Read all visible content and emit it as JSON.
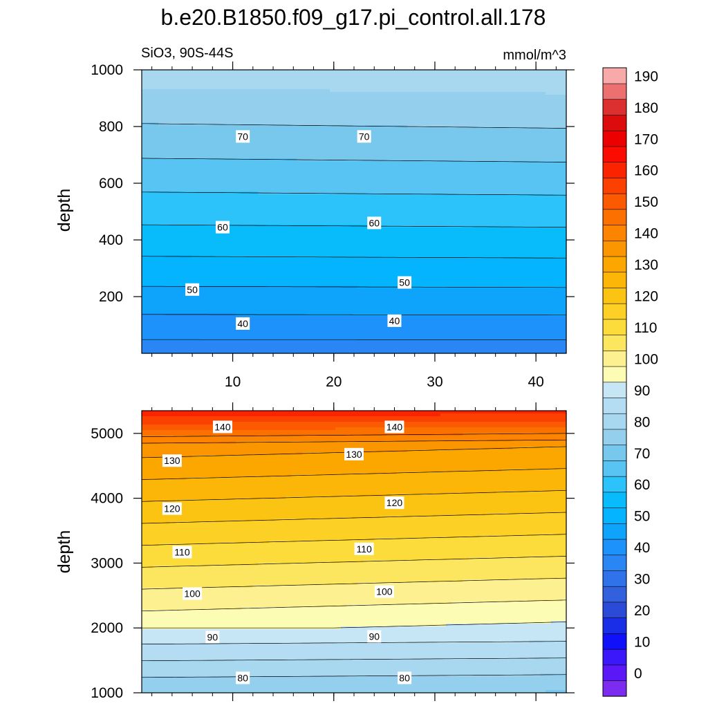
{
  "title": "b.e20.B1850.f09_g17.pi_control.all.178",
  "subtitle_left": "SiO3, 90S-44S",
  "subtitle_right": "mmol/m^3",
  "chart_data": [
    {
      "type": "heatmap",
      "panel": "upper",
      "xlabel": "",
      "ylabel": "depth",
      "xlim": [
        1,
        43
      ],
      "ylim": [
        1000,
        0
      ],
      "xticks": [
        10,
        20,
        30,
        40
      ],
      "yticks": [
        200,
        400,
        600,
        800,
        1000
      ],
      "contour_levels": [
        40,
        45,
        50,
        55,
        60,
        65,
        70,
        75
      ],
      "contour_labels": [
        {
          "value": 40,
          "x": 11,
          "depth": 105
        },
        {
          "value": 40,
          "x": 26,
          "depth": 115
        },
        {
          "value": 50,
          "x": 6,
          "depth": 225
        },
        {
          "value": 50,
          "x": 27,
          "depth": 250
        },
        {
          "value": 60,
          "x": 9,
          "depth": 445
        },
        {
          "value": 60,
          "x": 24,
          "depth": 460
        },
        {
          "value": 70,
          "x": 11,
          "depth": 765
        },
        {
          "value": 70,
          "x": 23,
          "depth": 765
        }
      ]
    },
    {
      "type": "heatmap",
      "panel": "lower",
      "xlabel": "",
      "ylabel": "depth",
      "xlim": [
        1,
        43
      ],
      "ylim": [
        5350,
        1000
      ],
      "yticks": [
        1000,
        2000,
        3000,
        4000,
        5000
      ],
      "contour_levels": [
        80,
        85,
        90,
        95,
        100,
        105,
        110,
        115,
        120,
        125,
        130,
        135,
        140,
        145
      ],
      "contour_labels": [
        {
          "value": 80,
          "x": 11,
          "depth": 1230
        },
        {
          "value": 80,
          "x": 27,
          "depth": 1230
        },
        {
          "value": 90,
          "x": 8,
          "depth": 1860
        },
        {
          "value": 90,
          "x": 24,
          "depth": 1870
        },
        {
          "value": 100,
          "x": 6,
          "depth": 2530
        },
        {
          "value": 100,
          "x": 25,
          "depth": 2560
        },
        {
          "value": 110,
          "x": 5,
          "depth": 3170
        },
        {
          "value": 110,
          "x": 23,
          "depth": 3220
        },
        {
          "value": 120,
          "x": 4,
          "depth": 3840
        },
        {
          "value": 120,
          "x": 26,
          "depth": 3930
        },
        {
          "value": 130,
          "x": 4,
          "depth": 4580
        },
        {
          "value": 130,
          "x": 22,
          "depth": 4680
        },
        {
          "value": 140,
          "x": 9,
          "depth": 5100
        },
        {
          "value": 140,
          "x": 26,
          "depth": 5100
        }
      ]
    }
  ],
  "colorbar": {
    "min": -5,
    "max": 195,
    "step": 5,
    "tick_labels": [
      0,
      10,
      20,
      30,
      40,
      50,
      60,
      70,
      80,
      90,
      100,
      110,
      120,
      130,
      140,
      150,
      160,
      170,
      180,
      190
    ],
    "colors": [
      "#7b2cf0",
      "#5b18f6",
      "#3a18fa",
      "#1010fa",
      "#1a2ee8",
      "#2b4ad8",
      "#3360dc",
      "#2f72ea",
      "#2a86f4",
      "#1c92fa",
      "#0fa4fc",
      "#05b4fe",
      "#08bcfc",
      "#2cc2fa",
      "#58c4f4",
      "#78c8ee",
      "#94d0ee",
      "#a8d8f0",
      "#b4dcf2",
      "#c6e6f6",
      "#fcfcb4",
      "#fcf090",
      "#fce660",
      "#fcdc3a",
      "#fcd024",
      "#fcc412",
      "#fcb608",
      "#fca600",
      "#fc9600",
      "#fc8400",
      "#fc7000",
      "#fc5a00",
      "#fc4000",
      "#fc2400",
      "#fc0c00",
      "#ec0000",
      "#dc0c0c",
      "#dc3030",
      "#ec7070",
      "#f8aaaa"
    ]
  }
}
